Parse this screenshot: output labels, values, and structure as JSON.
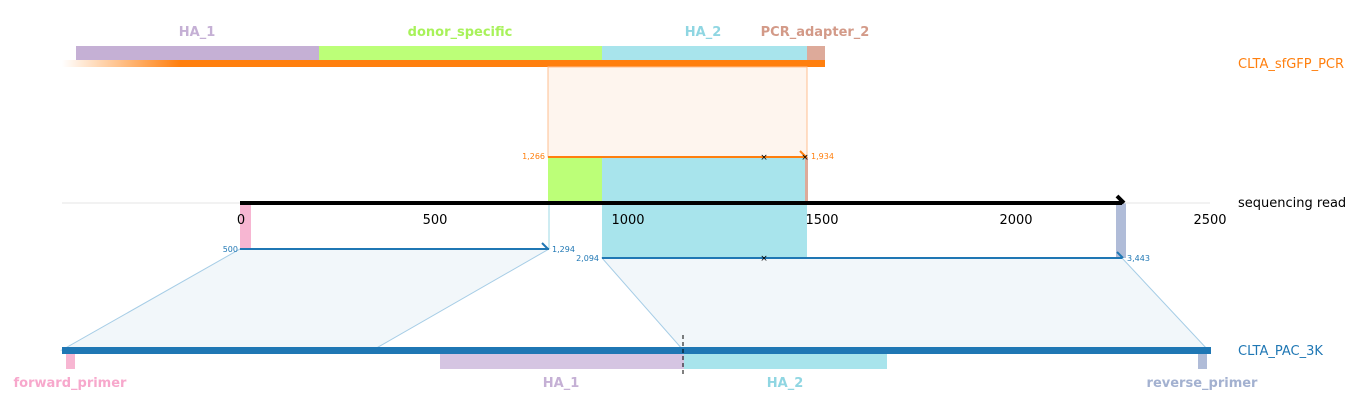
{
  "reference_top": {
    "name": "CLTA_sfGFP_PCR",
    "color": "#ff7f0e",
    "features": [
      {
        "label": "HA_1",
        "color": "#c5b0d5",
        "text_color": "#c5b0d5"
      },
      {
        "label": "donor_specific",
        "color": "#bcff78",
        "text_color": "#a8f25a"
      },
      {
        "label": "HA_2",
        "color": "#9edae5",
        "text_color": "#8fd6e2"
      },
      {
        "label": "PCR_adapter_2",
        "color": "#ddaa9a",
        "text_color": "#d39a88"
      }
    ]
  },
  "read": {
    "name": "sequencing read",
    "color": "#000000",
    "axis": {
      "min": 0,
      "max": 2500,
      "ticks": [
        "0",
        "500",
        "1000",
        "1500",
        "2000",
        "2500"
      ]
    }
  },
  "alignments": [
    {
      "ref": "top",
      "read_start": "1,266",
      "read_end": "1,934",
      "color": "#ff7f0e"
    },
    {
      "ref": "bottom",
      "read_start": "500",
      "read_end": "1,294",
      "color": "#1f77b4"
    },
    {
      "ref": "bottom",
      "read_start": "2,094",
      "read_end": "3,443",
      "color": "#1f77b4"
    }
  ],
  "reference_bottom": {
    "name": "CLTA_PAC_3K",
    "color": "#1f77b4",
    "features": [
      {
        "label": "forward_primer",
        "color": "#f7b6d2",
        "text_color": "#f7a8cc"
      },
      {
        "label": "HA_1",
        "color": "#c5b0d5",
        "text_color": "#c5b0d5"
      },
      {
        "label": "HA_2",
        "color": "#9edae5",
        "text_color": "#8fd6e2"
      },
      {
        "label": "reverse_primer",
        "color": "#b0bcd8",
        "text_color": "#a3b1d0"
      }
    ]
  }
}
